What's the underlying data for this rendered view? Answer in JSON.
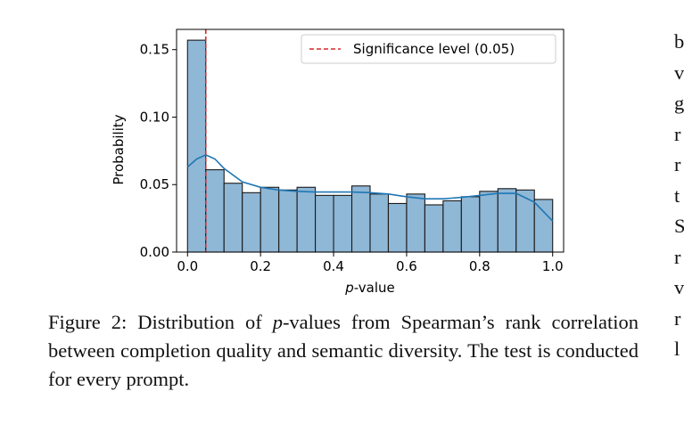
{
  "chart_data": {
    "type": "histogram",
    "xlabel_prefix": "p",
    "xlabel_suffix": "-value",
    "ylabel": "Probability",
    "xlim": [
      -0.03,
      1.03
    ],
    "ylim": [
      0,
      0.165
    ],
    "xticks": [
      0.0,
      0.2,
      0.4,
      0.6,
      0.8,
      1.0
    ],
    "xtick_labels": [
      "0.0",
      "0.2",
      "0.4",
      "0.6",
      "0.8",
      "1.0"
    ],
    "yticks": [
      0.0,
      0.05,
      0.1,
      0.15
    ],
    "ytick_labels": [
      "0.00",
      "0.05",
      "0.10",
      "0.15"
    ],
    "bin_width": 0.05,
    "bins_start": [
      0.0,
      0.05,
      0.1,
      0.15,
      0.2,
      0.25,
      0.3,
      0.35,
      0.4,
      0.45,
      0.5,
      0.55,
      0.6,
      0.65,
      0.7,
      0.75,
      0.8,
      0.85,
      0.9,
      0.95
    ],
    "values": [
      0.157,
      0.061,
      0.051,
      0.044,
      0.048,
      0.046,
      0.048,
      0.042,
      0.042,
      0.049,
      0.043,
      0.036,
      0.043,
      0.035,
      0.038,
      0.041,
      0.045,
      0.047,
      0.046,
      0.039
    ],
    "kde": {
      "x": [
        0.0,
        0.025,
        0.05,
        0.075,
        0.1,
        0.15,
        0.2,
        0.25,
        0.3,
        0.35,
        0.4,
        0.45,
        0.5,
        0.55,
        0.6,
        0.65,
        0.7,
        0.75,
        0.8,
        0.85,
        0.9,
        0.95,
        1.0
      ],
      "y": [
        0.063,
        0.069,
        0.072,
        0.069,
        0.062,
        0.052,
        0.048,
        0.046,
        0.045,
        0.0445,
        0.0445,
        0.0445,
        0.044,
        0.043,
        0.041,
        0.0395,
        0.0395,
        0.0405,
        0.042,
        0.0435,
        0.0435,
        0.037,
        0.023
      ]
    },
    "threshold": {
      "x": 0.05,
      "label": "Significance level (0.05)"
    },
    "legend_position": "top-right",
    "grid": false,
    "colors": {
      "bar_fill": "#8fb7d6",
      "bar_edge": "#1a1a1a",
      "kde": "#1f77b4",
      "threshold": "#d62728"
    }
  },
  "caption": {
    "prefix": "Figure 2: Distribution of ",
    "pvar": "p",
    "rest": "-values from Spearman’s rank correlation between completion quality and semantic diversity. The test is conducted for every prompt."
  },
  "adjacent_column_letters": [
    "b",
    "v",
    "g",
    "r",
    "r",
    "t",
    "S",
    "r",
    "v",
    "r",
    "l"
  ]
}
